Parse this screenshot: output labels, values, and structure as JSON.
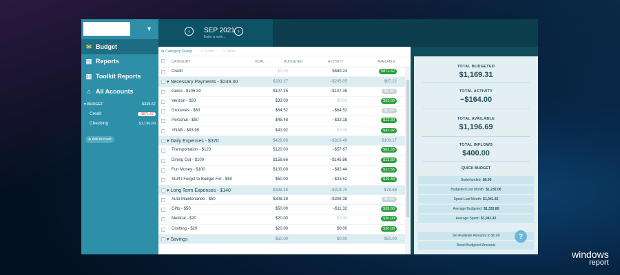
{
  "sidebar": {
    "nav": [
      {
        "label": "Budget",
        "icon": "envelope-icon",
        "active": true
      },
      {
        "label": "Reports",
        "icon": "report-icon"
      },
      {
        "label": "Toolkit Reports",
        "icon": "document-icon"
      },
      {
        "label": "All Accounts",
        "icon": "bank-icon"
      }
    ],
    "accounts_header": {
      "label": "BUDGET",
      "amount": "$325.67"
    },
    "accounts": [
      {
        "name": "Credit",
        "amount": "-$871.62"
      },
      {
        "name": "Checking",
        "amount": "$1,196.69"
      }
    ],
    "add_account_label": "Add Account"
  },
  "header": {
    "month": "SEP 2021",
    "note_placeholder": "Enter a note..."
  },
  "toolbar": {
    "category_group": "Category Group",
    "undo": "Undo",
    "redo": "Redo"
  },
  "table": {
    "columns": {
      "category": "CATEGORY",
      "goal": "GOAL",
      "budgeted": "BUDGETED",
      "activity": "ACTIVITY",
      "available": "AVAILABLE"
    },
    "rows": [
      {
        "type": "item",
        "name": "Credit",
        "budgeted": "$0.00",
        "budgeted_muted": true,
        "activity": "$680.24",
        "available": "$871.62",
        "pill": "green"
      },
      {
        "type": "group",
        "name": "Necessary Payments - $249.30",
        "budgeted": "$292.27",
        "activity": "−$205.05",
        "available": "$87.22"
      },
      {
        "type": "item",
        "name": "Geico - $106.30",
        "budgeted": "$107.35",
        "activity": "−$107.35",
        "available": "$0.00",
        "pill": "grey"
      },
      {
        "type": "item",
        "name": "Verizon - $33",
        "budgeted": "$33.00",
        "activity": "$0.00",
        "activity_muted": true,
        "available": "$33.00",
        "pill": "green"
      },
      {
        "type": "item",
        "name": "Groceries - $60",
        "budgeted": "$64.52",
        "activity": "−$64.52",
        "available": "$0.00",
        "pill": "grey"
      },
      {
        "type": "item",
        "name": "Personal - $50",
        "budgeted": "$45.48",
        "activity": "−$33.18",
        "available": "$12.30",
        "pill": "green"
      },
      {
        "type": "item",
        "name": "YNAB - $83.99",
        "budgeted": "$41.92",
        "activity": "$0.00",
        "activity_muted": true,
        "available": "$41.92",
        "pill": "green"
      },
      {
        "type": "group",
        "name": "Daily Expenses - $370",
        "budgeted": "$428.66",
        "activity": "−$319.49",
        "available": "$109.17"
      },
      {
        "type": "item",
        "name": "Transportation - $120",
        "budgeted": "$120.00",
        "activity": "−$57.67",
        "available": "$62.33",
        "pill": "green"
      },
      {
        "type": "item",
        "name": "Dining Out - $100",
        "budgeted": "$158.66",
        "activity": "−$145.86",
        "available": "$12.80",
        "pill": "green"
      },
      {
        "type": "item",
        "name": "Fun Money - $100",
        "budgeted": "$100.00",
        "activity": "−$82.44",
        "available": "$17.56",
        "pill": "green"
      },
      {
        "type": "item",
        "name": "Stuff I Forgot to Budget For - $50",
        "budgeted": "$50.00",
        "activity": "−$33.52",
        "available": "$16.48",
        "pill": "green"
      },
      {
        "type": "group",
        "name": "Long Term Expenses - $140",
        "budgeted": "$398.38",
        "activity": "−$319.70",
        "available": "$78.68"
      },
      {
        "type": "item",
        "name": "Auto Maintenance - $50",
        "budgeted": "$308.38",
        "activity": "−$308.38",
        "available": "$0.00",
        "pill": "grey"
      },
      {
        "type": "item",
        "name": "Gifts - $50",
        "budgeted": "$50.00",
        "activity": "−$11.32",
        "available": "$38.68",
        "pill": "green"
      },
      {
        "type": "item",
        "name": "Medical - $20",
        "budgeted": "$20.00",
        "activity": "$0.00",
        "activity_muted": true,
        "available": "$20.00",
        "pill": "green"
      },
      {
        "type": "item",
        "name": "Clothing - $20",
        "budgeted": "$20.00",
        "activity": "$0.00",
        "available": "$20.00",
        "pill": "green"
      },
      {
        "type": "group",
        "name": "Savings",
        "budgeted": "$50.00",
        "activity": "$0.00",
        "available": "$50.00"
      }
    ]
  },
  "summary": {
    "blocks": [
      {
        "label": "TOTAL BUDGETED",
        "value": "$1,169.31"
      },
      {
        "label": "TOTAL ACTIVITY",
        "value": "−$164.00"
      },
      {
        "label": "TOTAL AVAILABLE",
        "value": "$1,196.69"
      },
      {
        "label": "TOTAL INFLOWS",
        "value": "$400.00"
      }
    ],
    "quick_title": "QUICK BUDGET",
    "quick": [
      {
        "label": "Underfunded:",
        "value": "$0.00"
      },
      {
        "label": "Budgeted Last Month:",
        "value": "$1,232.00"
      },
      {
        "label": "Spent Last Month:",
        "value": "$1,041.42"
      },
      {
        "label": "Average Budgeted:",
        "value": "$1,332.80"
      },
      {
        "label": "Average Spent:",
        "value": "$1,041.42"
      }
    ],
    "actions": [
      "Set Available Amounts to $0.00",
      "Reset Budgeted Amounts"
    ]
  },
  "help_label": "?",
  "brand": {
    "line1": "windows",
    "line2": "report"
  }
}
